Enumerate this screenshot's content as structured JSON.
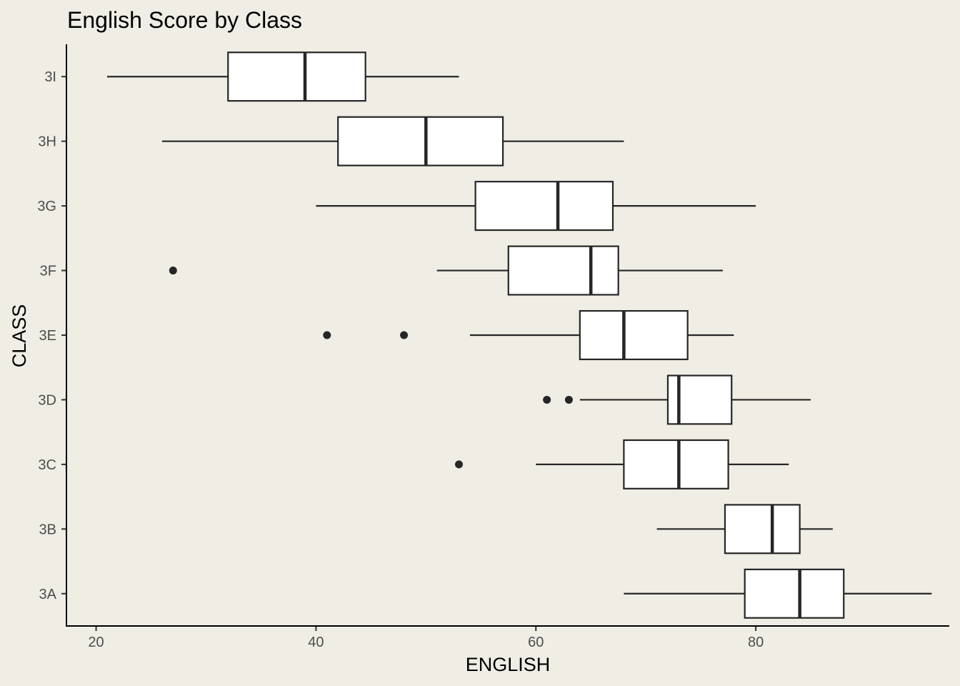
{
  "chart_data": {
    "type": "boxplot",
    "orientation": "horizontal",
    "title": "English Score by Class",
    "xlabel": "ENGLISH",
    "ylabel": "CLASS",
    "xlim": [
      17.3,
      97.6
    ],
    "xticks": [
      20,
      40,
      60,
      80
    ],
    "categories": [
      "3A",
      "3B",
      "3C",
      "3D",
      "3E",
      "3F",
      "3G",
      "3H",
      "3I"
    ],
    "boxes": [
      {
        "category": "3A",
        "whisker_low": 68,
        "q1": 79,
        "median": 84,
        "q3": 88,
        "whisker_high": 96,
        "outliers": []
      },
      {
        "category": "3B",
        "whisker_low": 71,
        "q1": 77.2,
        "median": 81.5,
        "q3": 84,
        "whisker_high": 87,
        "outliers": []
      },
      {
        "category": "3C",
        "whisker_low": 60,
        "q1": 68,
        "median": 73,
        "q3": 77.5,
        "whisker_high": 83,
        "outliers": [
          53
        ]
      },
      {
        "category": "3D",
        "whisker_low": 64,
        "q1": 72,
        "median": 73,
        "q3": 77.8,
        "whisker_high": 85,
        "outliers": [
          61,
          63
        ]
      },
      {
        "category": "3E",
        "whisker_low": 54,
        "q1": 64,
        "median": 68,
        "q3": 73.8,
        "whisker_high": 78,
        "outliers": [
          41,
          48
        ]
      },
      {
        "category": "3F",
        "whisker_low": 51,
        "q1": 57.5,
        "median": 65,
        "q3": 67.5,
        "whisker_high": 77,
        "outliers": [
          27
        ]
      },
      {
        "category": "3G",
        "whisker_low": 40,
        "q1": 54.5,
        "median": 62,
        "q3": 67,
        "whisker_high": 80,
        "outliers": []
      },
      {
        "category": "3H",
        "whisker_low": 26,
        "q1": 42,
        "median": 50,
        "q3": 57,
        "whisker_high": 68,
        "outliers": []
      },
      {
        "category": "3I",
        "whisker_low": 21,
        "q1": 32,
        "median": 39,
        "q3": 44.5,
        "whisker_high": 53,
        "outliers": []
      }
    ],
    "grid": false,
    "colors": {
      "background": "#f0ede5",
      "box_fill": "#ffffff",
      "stroke": "#262626"
    }
  }
}
